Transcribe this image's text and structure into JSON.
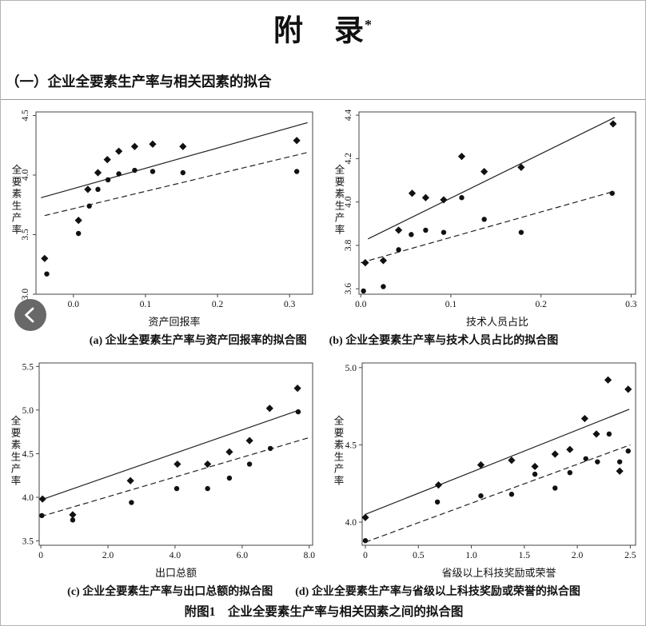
{
  "page": {
    "title": "附　录",
    "title_superscript": "*",
    "section_heading": "（一）企业全要素生产率与相关因素的拟合",
    "figure_caption": "附图1　企业全要素生产率与相关因素之间的拟合图"
  },
  "back_button": {
    "icon": "chevron-left"
  },
  "colors": {
    "ink": "#111111",
    "axis": "#444444",
    "marker": "#111111",
    "fit_line": "#222222",
    "figure_border": "#9a9a9a",
    "page_border": "#b3b3b3",
    "back_button_bg": "#686868",
    "back_button_fg": "#ffffff"
  },
  "chart_data": [
    {
      "id": "a",
      "type": "scatter",
      "caption": "(a) 企业全要素生产率与资产回报率的拟合图",
      "xlabel": "资产回报率",
      "ylabel": "全要素生产率",
      "xlim": [
        -0.052,
        0.332
      ],
      "ylim": [
        3.0,
        4.53
      ],
      "xticks": [
        0.0,
        0.1,
        0.2,
        0.3
      ],
      "xtick_labels": [
        "0.0",
        "0.1",
        "0.2",
        "0.3"
      ],
      "yticks": [
        3.0,
        3.5,
        4.0,
        4.5
      ],
      "ytick_labels": [
        "3.0",
        "3.5",
        "4.0",
        "4.5"
      ],
      "ytick_rotated": true,
      "grid": false,
      "legend": null,
      "series": [
        {
          "name": "diamond-points",
          "marker": "diamond",
          "points": [
            [
              -0.04,
              3.3
            ],
            [
              0.007,
              3.62
            ],
            [
              0.02,
              3.88
            ],
            [
              0.034,
              4.02
            ],
            [
              0.047,
              4.13
            ],
            [
              0.063,
              4.2
            ],
            [
              0.085,
              4.24
            ],
            [
              0.11,
              4.26
            ],
            [
              0.152,
              4.24
            ],
            [
              0.31,
              4.29
            ]
          ]
        },
        {
          "name": "circle-points",
          "marker": "circle",
          "points": [
            [
              -0.037,
              3.17
            ],
            [
              0.007,
              3.51
            ],
            [
              0.022,
              3.74
            ],
            [
              0.034,
              3.88
            ],
            [
              0.048,
              3.96
            ],
            [
              0.063,
              4.01
            ],
            [
              0.085,
              4.04
            ],
            [
              0.11,
              4.03
            ],
            [
              0.152,
              4.02
            ],
            [
              0.31,
              4.03
            ]
          ]
        }
      ],
      "lines": [
        {
          "style": "solid",
          "x1": -0.045,
          "y1": 3.81,
          "x2": 0.325,
          "y2": 4.44
        },
        {
          "style": "dashed",
          "x1": -0.04,
          "y1": 3.66,
          "x2": 0.325,
          "y2": 4.19
        }
      ]
    },
    {
      "id": "b",
      "type": "scatter",
      "caption": "(b) 企业全要素生产率与技术人员占比的拟合图",
      "xlabel": "技术人员占比",
      "ylabel": "全要素生产率",
      "xlim": [
        -0.002,
        0.305
      ],
      "ylim": [
        3.575,
        4.415
      ],
      "xticks": [
        0.0,
        0.1,
        0.2,
        0.3
      ],
      "xtick_labels": [
        "0.0",
        "0.1",
        "0.2",
        "0.3"
      ],
      "yticks": [
        3.6,
        3.8,
        4.0,
        4.2,
        4.4
      ],
      "ytick_labels": [
        "3.6",
        "3.8",
        "4.0",
        "4.2",
        "4.4"
      ],
      "ytick_rotated": true,
      "grid": false,
      "legend": null,
      "series": [
        {
          "name": "diamond-points",
          "marker": "diamond",
          "points": [
            [
              0.005,
              3.72
            ],
            [
              0.025,
              3.73
            ],
            [
              0.042,
              3.87
            ],
            [
              0.057,
              4.04
            ],
            [
              0.072,
              4.02
            ],
            [
              0.092,
              4.01
            ],
            [
              0.112,
              4.21
            ],
            [
              0.137,
              4.14
            ],
            [
              0.178,
              4.16
            ],
            [
              0.28,
              4.36
            ]
          ]
        },
        {
          "name": "circle-points",
          "marker": "circle",
          "points": [
            [
              0.003,
              3.59
            ],
            [
              0.025,
              3.61
            ],
            [
              0.042,
              3.78
            ],
            [
              0.056,
              3.85
            ],
            [
              0.072,
              3.87
            ],
            [
              0.092,
              3.86
            ],
            [
              0.112,
              4.02
            ],
            [
              0.137,
              3.92
            ],
            [
              0.178,
              3.86
            ],
            [
              0.279,
              4.04
            ]
          ]
        }
      ],
      "lines": [
        {
          "style": "solid",
          "x1": 0.008,
          "y1": 3.83,
          "x2": 0.282,
          "y2": 4.39
        },
        {
          "style": "dashed",
          "x1": 0.0,
          "y1": 3.72,
          "x2": 0.282,
          "y2": 4.05
        }
      ]
    },
    {
      "id": "c",
      "type": "scatter",
      "caption": "(c) 企业全要素生产率与出口总额的拟合图",
      "xlabel": "出口总额",
      "ylabel": "全要素生产率",
      "xlim": [
        -0.05,
        8.1
      ],
      "ylim": [
        3.45,
        5.54
      ],
      "xticks": [
        0,
        2,
        4,
        6,
        8
      ],
      "xtick_labels": [
        "0",
        "2.0",
        "4.0",
        "6.0",
        "8.0"
      ],
      "yticks": [
        3.5,
        4.0,
        4.5,
        5.0,
        5.5
      ],
      "ytick_labels": [
        "3.5",
        "4.0",
        "4.5",
        "5.0",
        "5.5"
      ],
      "ytick_rotated": false,
      "grid": false,
      "legend": null,
      "series": [
        {
          "name": "diamond-points",
          "marker": "diamond",
          "points": [
            [
              0.05,
              3.98
            ],
            [
              0.95,
              3.8
            ],
            [
              2.67,
              4.19
            ],
            [
              4.07,
              4.38
            ],
            [
              4.97,
              4.38
            ],
            [
              5.62,
              4.52
            ],
            [
              6.22,
              4.65
            ],
            [
              6.82,
              5.02
            ],
            [
              7.65,
              5.25
            ]
          ]
        },
        {
          "name": "circle-points",
          "marker": "circle",
          "points": [
            [
              0.03,
              3.79
            ],
            [
              0.95,
              3.74
            ],
            [
              2.7,
              3.94
            ],
            [
              4.05,
              4.1
            ],
            [
              4.97,
              4.1
            ],
            [
              5.62,
              4.22
            ],
            [
              6.22,
              4.38
            ],
            [
              6.84,
              4.56
            ],
            [
              7.67,
              4.98
            ]
          ]
        }
      ],
      "lines": [
        {
          "style": "solid",
          "x1": 0.0,
          "y1": 3.97,
          "x2": 7.7,
          "y2": 5.0
        },
        {
          "style": "dashed",
          "x1": 0.0,
          "y1": 3.78,
          "x2": 8.05,
          "y2": 4.69
        }
      ]
    },
    {
      "id": "d",
      "type": "scatter",
      "caption": "(d) 企业全要素生产率与省级以上科技奖励或荣誉的拟合图",
      "xlabel": "省级以上科技奖励或荣誉",
      "ylabel": "全要素生产率",
      "xlim": [
        -0.03,
        2.55
      ],
      "ylim": [
        3.85,
        5.03
      ],
      "xticks": [
        0,
        0.5,
        1.0,
        1.5,
        2.0,
        2.5
      ],
      "xtick_labels": [
        "0",
        "0.5",
        "1.0",
        "1.5",
        "2.0",
        "2.5"
      ],
      "yticks": [
        4.0,
        4.5,
        5.0
      ],
      "ytick_labels": [
        "4.0",
        "4.5",
        "5.0"
      ],
      "ytick_rotated": false,
      "grid": false,
      "legend": null,
      "series": [
        {
          "name": "diamond-points",
          "marker": "diamond",
          "points": [
            [
              0.0,
              4.03
            ],
            [
              0.69,
              4.24
            ],
            [
              1.09,
              4.37
            ],
            [
              1.38,
              4.4
            ],
            [
              1.6,
              4.36
            ],
            [
              1.79,
              4.44
            ],
            [
              1.93,
              4.47
            ],
            [
              2.07,
              4.67
            ],
            [
              2.18,
              4.57
            ],
            [
              2.29,
              4.92
            ],
            [
              2.4,
              4.33
            ],
            [
              2.48,
              4.86
            ]
          ]
        },
        {
          "name": "circle-points",
          "marker": "circle",
          "points": [
            [
              0.0,
              3.88
            ],
            [
              0.68,
              4.13
            ],
            [
              1.09,
              4.17
            ],
            [
              1.38,
              4.18
            ],
            [
              1.6,
              4.31
            ],
            [
              1.79,
              4.22
            ],
            [
              1.93,
              4.32
            ],
            [
              2.08,
              4.41
            ],
            [
              2.19,
              4.39
            ],
            [
              2.3,
              4.57
            ],
            [
              2.4,
              4.39
            ],
            [
              2.48,
              4.46
            ]
          ]
        }
      ],
      "lines": [
        {
          "style": "solid",
          "x1": 0.0,
          "y1": 4.05,
          "x2": 2.49,
          "y2": 4.73
        },
        {
          "style": "dashed",
          "x1": 0.0,
          "y1": 3.87,
          "x2": 2.5,
          "y2": 4.5
        }
      ]
    }
  ]
}
